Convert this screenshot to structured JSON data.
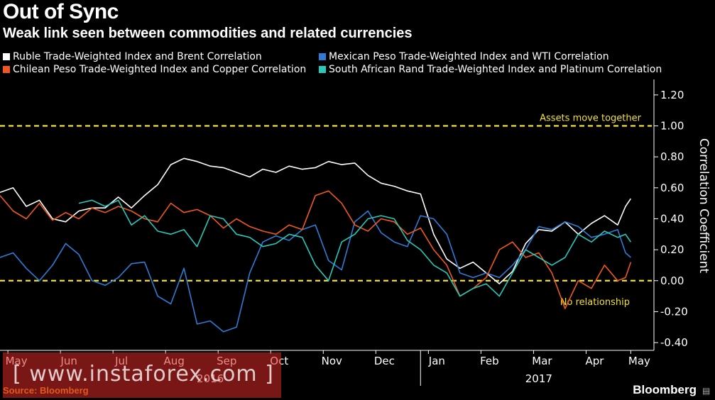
{
  "title": "Out of Sync",
  "subtitle": "Weak link seen between commodities and related currencies",
  "source": "Source: Bloomberg",
  "brand": "Bloomberg",
  "brand_icon": "graph-icon",
  "watermark": "[ www.instaforex.com ]",
  "colors": {
    "ruble": "#ffffff",
    "chile": "#f0581d",
    "mexico": "#2f7bd6",
    "rand": "#27c9bb",
    "reference": "#f2e22b",
    "axis": "#ffffff"
  },
  "chart_data": {
    "type": "line",
    "ylabel": "Correlation Coefficient",
    "ylim": [
      -0.45,
      1.3
    ],
    "y_ticks": [
      "1.20",
      "1.00",
      "0.80",
      "0.60",
      "0.40",
      "0.20",
      "0.00",
      "-0.20",
      "-0.40"
    ],
    "y_tick_values": [
      1.2,
      1.0,
      0.8,
      0.6,
      0.4,
      0.2,
      0.0,
      -0.2,
      -0.4
    ],
    "x_range": [
      0,
      12.4
    ],
    "x_tick_labels": [
      "May",
      "Jun",
      "Jul",
      "Aug",
      "Sep",
      "Oct",
      "Nov",
      "Dec",
      "Jan",
      "Feb",
      "Mar",
      "Apr",
      "May"
    ],
    "x_tick_positions": [
      0.15,
      1.15,
      2.15,
      3.15,
      4.15,
      5.15,
      6.15,
      7.15,
      8.15,
      9.15,
      10.15,
      11.15,
      12.0
    ],
    "year_labels": [
      {
        "label": "2016",
        "x": 4.0
      },
      {
        "label": "2017",
        "x": 10.25
      }
    ],
    "reference_lines": [
      {
        "y": 1.0,
        "label": "Assets move together"
      },
      {
        "y": 0.0,
        "label": "No relationship"
      }
    ],
    "series": [
      {
        "name": "Ruble Trade-Weighted Index and Brent Correlation",
        "color": "#ffffff",
        "x": [
          0.0,
          0.25,
          0.5,
          0.75,
          1.0,
          1.25,
          1.5,
          1.75,
          2.0,
          2.25,
          2.5,
          2.75,
          3.0,
          3.25,
          3.5,
          3.75,
          4.0,
          4.25,
          4.5,
          4.75,
          5.0,
          5.25,
          5.5,
          5.75,
          6.0,
          6.25,
          6.5,
          6.75,
          7.0,
          7.25,
          7.5,
          7.75,
          8.0,
          8.25,
          8.5,
          8.75,
          9.0,
          9.25,
          9.5,
          9.75,
          10.0,
          10.25,
          10.5,
          10.75,
          11.0,
          11.25,
          11.5,
          11.75,
          11.9,
          12.0
        ],
        "values": [
          0.57,
          0.6,
          0.48,
          0.52,
          0.4,
          0.38,
          0.45,
          0.47,
          0.47,
          0.54,
          0.47,
          0.55,
          0.62,
          0.75,
          0.79,
          0.77,
          0.74,
          0.73,
          0.7,
          0.67,
          0.72,
          0.7,
          0.74,
          0.72,
          0.73,
          0.77,
          0.75,
          0.76,
          0.68,
          0.63,
          0.61,
          0.58,
          0.56,
          0.3,
          0.14,
          0.08,
          0.12,
          0.05,
          -0.02,
          0.06,
          0.24,
          0.33,
          0.32,
          0.38,
          0.3,
          0.37,
          0.42,
          0.36,
          0.48,
          0.53
        ]
      },
      {
        "name": "Mexican Peso Trade-Weighted Index and WTI Correlation",
        "color": "#2f7bd6",
        "x": [
          0.0,
          0.25,
          0.5,
          0.75,
          1.0,
          1.25,
          1.5,
          1.75,
          2.0,
          2.25,
          2.5,
          2.75,
          3.0,
          3.25,
          3.5,
          3.75,
          4.0,
          4.25,
          4.5,
          4.75,
          5.0,
          5.25,
          5.5,
          5.75,
          6.0,
          6.25,
          6.5,
          6.75,
          7.0,
          7.25,
          7.5,
          7.75,
          8.0,
          8.25,
          8.5,
          8.75,
          9.0,
          9.25,
          9.5,
          9.75,
          10.0,
          10.25,
          10.5,
          10.75,
          11.0,
          11.25,
          11.5,
          11.75,
          11.9,
          12.0
        ],
        "values": [
          0.15,
          0.18,
          0.08,
          0.0,
          0.1,
          0.24,
          0.17,
          0.0,
          -0.03,
          0.02,
          0.11,
          0.12,
          -0.1,
          -0.15,
          0.08,
          -0.28,
          -0.26,
          -0.33,
          -0.3,
          0.05,
          0.25,
          0.29,
          0.26,
          0.33,
          0.36,
          0.13,
          0.07,
          0.38,
          0.45,
          0.31,
          0.25,
          0.22,
          0.42,
          0.4,
          0.3,
          0.05,
          0.02,
          0.05,
          0.02,
          0.1,
          0.2,
          0.35,
          0.33,
          0.38,
          0.35,
          0.28,
          0.3,
          0.33,
          0.18,
          0.15
        ]
      },
      {
        "name": "Chilean Peso Trade-Weighted Index and Copper Correlation",
        "color": "#f0581d",
        "x": [
          0.0,
          0.25,
          0.5,
          0.75,
          1.0,
          1.25,
          1.5,
          1.75,
          2.0,
          2.25,
          2.5,
          2.75,
          3.0,
          3.25,
          3.5,
          3.75,
          4.0,
          4.25,
          4.5,
          4.75,
          5.0,
          5.25,
          5.5,
          5.75,
          6.0,
          6.25,
          6.5,
          6.75,
          7.0,
          7.25,
          7.5,
          7.75,
          8.0,
          8.25,
          8.5,
          8.75,
          9.0,
          9.25,
          9.5,
          9.75,
          10.0,
          10.25,
          10.5,
          10.75,
          11.0,
          11.25,
          11.5,
          11.75,
          11.9,
          12.0
        ],
        "values": [
          0.55,
          0.45,
          0.4,
          0.5,
          0.39,
          0.44,
          0.4,
          0.47,
          0.44,
          0.48,
          0.45,
          0.4,
          0.38,
          0.5,
          0.44,
          0.46,
          0.42,
          0.34,
          0.4,
          0.35,
          0.32,
          0.3,
          0.36,
          0.33,
          0.55,
          0.58,
          0.5,
          0.36,
          0.32,
          0.4,
          0.38,
          0.3,
          0.34,
          0.2,
          0.1,
          -0.1,
          -0.05,
          0.02,
          0.2,
          0.25,
          0.15,
          0.18,
          0.05,
          -0.18,
          0.0,
          -0.05,
          0.1,
          0.0,
          0.02,
          0.12
        ]
      },
      {
        "name": "South African Rand Trade-Weighted Index and Platinum Correlation",
        "color": "#27c9bb",
        "x": [
          1.5,
          1.75,
          2.0,
          2.25,
          2.5,
          2.75,
          3.0,
          3.25,
          3.5,
          3.75,
          4.0,
          4.25,
          4.5,
          4.75,
          5.0,
          5.25,
          5.5,
          5.75,
          6.0,
          6.25,
          6.5,
          6.75,
          7.0,
          7.25,
          7.5,
          7.75,
          8.0,
          8.25,
          8.5,
          8.75,
          9.0,
          9.25,
          9.5,
          9.75,
          10.0,
          10.25,
          10.5,
          10.75,
          11.0,
          11.25,
          11.5,
          11.75,
          11.9,
          12.0
        ],
        "values": [
          0.5,
          0.52,
          0.48,
          0.52,
          0.36,
          0.42,
          0.32,
          0.3,
          0.33,
          0.22,
          0.42,
          0.4,
          0.3,
          0.28,
          0.22,
          0.24,
          0.3,
          0.28,
          0.1,
          0.0,
          0.25,
          0.3,
          0.4,
          0.42,
          0.4,
          0.26,
          0.2,
          0.1,
          0.05,
          -0.1,
          -0.05,
          -0.02,
          -0.1,
          0.05,
          0.2,
          0.15,
          0.1,
          0.15,
          0.3,
          0.25,
          0.32,
          0.28,
          0.3,
          0.25
        ]
      }
    ]
  }
}
